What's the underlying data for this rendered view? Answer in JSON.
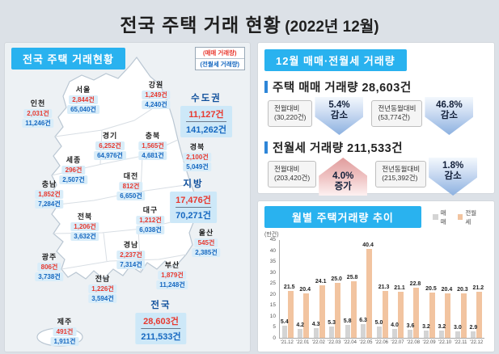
{
  "page_title": {
    "main": "전국 주택 거래 현황",
    "sub": "(2022년 12월)"
  },
  "map_panel": {
    "header": "전국 주택 거래현황",
    "legend": {
      "sale_label": "(매매 거래량)",
      "rent_label": "(전월세 거래량)"
    },
    "regions": [
      {
        "name": "서울",
        "sale": "2,844건",
        "rent": "65,040건"
      },
      {
        "name": "인천",
        "sale": "2,031건",
        "rent": "11,246건"
      },
      {
        "name": "경기",
        "sale": "6,252건",
        "rent": "64,976건"
      },
      {
        "name": "강원",
        "sale": "1,249건",
        "rent": "4,240건"
      },
      {
        "name": "충북",
        "sale": "1,565건",
        "rent": "4,681건"
      },
      {
        "name": "세종",
        "sale": "296건",
        "rent": "2,507건"
      },
      {
        "name": "대전",
        "sale": "812건",
        "rent": "6,650건"
      },
      {
        "name": "충남",
        "sale": "1,852건",
        "rent": "7,284건"
      },
      {
        "name": "경북",
        "sale": "2,100건",
        "rent": "5,049건"
      },
      {
        "name": "대구",
        "sale": "1,212건",
        "rent": "6,038건"
      },
      {
        "name": "전북",
        "sale": "1,206건",
        "rent": "3,632건"
      },
      {
        "name": "울산",
        "sale": "545건",
        "rent": "2,385건"
      },
      {
        "name": "경남",
        "sale": "2,237건",
        "rent": "7,314건"
      },
      {
        "name": "광주",
        "sale": "806건",
        "rent": "3,738건"
      },
      {
        "name": "부산",
        "sale": "1,879건",
        "rent": "11,248건"
      },
      {
        "name": "전남",
        "sale": "1,226건",
        "rent": "3,594건"
      },
      {
        "name": "제주",
        "sale": "491건",
        "rent": "1,911건"
      }
    ],
    "highlights": [
      {
        "name": "수도권",
        "sale": "11,127건",
        "rent": "141,262건"
      },
      {
        "name": "지방",
        "sale": "17,476건",
        "rent": "70,271건"
      },
      {
        "name": "전국",
        "sale": "28,603건",
        "rent": "211,533건"
      }
    ]
  },
  "stats_panel": {
    "header": "12월 매매·전월세 거래량",
    "sections": [
      {
        "title": "주택 매매 거래량 28,603건",
        "items": [
          {
            "label": "전월대비",
            "base": "(30,220건)",
            "pct": "5.4%",
            "direction_label": "감소",
            "direction": "down"
          },
          {
            "label": "전년동월대비",
            "base": "(53,774건)",
            "pct": "46.8%",
            "direction_label": "감소",
            "direction": "down"
          }
        ]
      },
      {
        "title": "전월세 거래량 211,533건",
        "items": [
          {
            "label": "전월대비",
            "base": "(203,420건)",
            "pct": "4.0%",
            "direction_label": "증가",
            "direction": "up"
          },
          {
            "label": "전년동월대비",
            "base": "(215,392건)",
            "pct": "1.8%",
            "direction_label": "감소",
            "direction": "down"
          }
        ]
      }
    ]
  },
  "chart_panel": {
    "header": "월별 주택거래량 추이",
    "unit_label": "(만건)"
  },
  "chart_data": {
    "type": "bar",
    "title": "월별 주택거래량 추이",
    "categories": [
      "'21.12",
      "'22.01",
      "'22.02",
      "'22.03",
      "'22.04",
      "'22.05",
      "'22.06",
      "'22.07",
      "'22.08",
      "'22.09",
      "'22.10",
      "'22.11",
      "'22.12"
    ],
    "series": [
      {
        "name": "매매",
        "color": "#d4d4d4",
        "values": [
          5.4,
          4.2,
          4.3,
          5.3,
          5.8,
          6.3,
          5.0,
          4.0,
          3.6,
          3.2,
          3.2,
          3.0,
          2.9
        ]
      },
      {
        "name": "전월세",
        "color": "#f2c4a0",
        "values": [
          21.5,
          20.4,
          24.1,
          25.0,
          25.8,
          40.4,
          21.3,
          21.1,
          22.8,
          20.5,
          20.4,
          20.3,
          21.2
        ]
      }
    ],
    "ylabel": "(만건)",
    "ylim": [
      0,
      45
    ],
    "ytick_step": 5,
    "legend_position": "top-right",
    "grid": false
  },
  "colors": {
    "sale_red": "#e8392f",
    "rent_blue": "#1668c0",
    "header_cyan": "#29b2ef",
    "highlight_blue": "#10509c",
    "bar_gray": "#d4d4d4",
    "bar_orange": "#f2c4a0"
  }
}
